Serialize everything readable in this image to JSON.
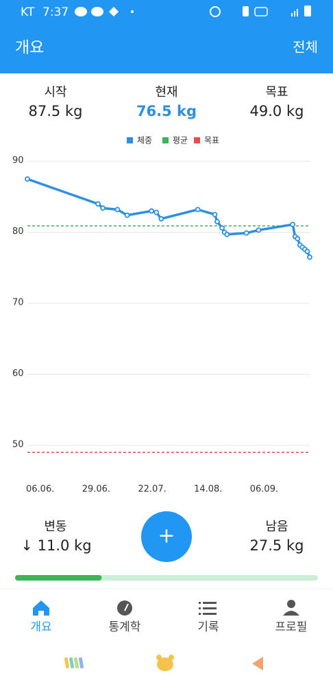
{
  "status_bar": {
    "carrier": "KT",
    "time": "7:37"
  },
  "header": {
    "title": "개요",
    "action": "전체"
  },
  "summary": [
    {
      "label": "시작",
      "value": "87.5 kg"
    },
    {
      "label": "현재",
      "value": "76.5 kg"
    },
    {
      "label": "목표",
      "value": "49.0 kg"
    }
  ],
  "chart_data": {
    "type": "line",
    "series": [
      {
        "name": "체중",
        "color": "#2d8fe2",
        "x": [
          "06.06.",
          "05.07.",
          "07.07.",
          "13.07.",
          "17.07.",
          "27.07.",
          "29.07.",
          "31.07.",
          "15.08.",
          "22.08.",
          "23.08.",
          "25.08.",
          "26.08.",
          "27.08.",
          "04.09.",
          "09.09.",
          "23.09.",
          "24.09.",
          "25.09.",
          "26.09.",
          "27.09.",
          "28.09.",
          "29.09.",
          "30.09."
        ],
        "values": [
          87.5,
          84.0,
          83.4,
          83.2,
          82.4,
          83.0,
          82.8,
          81.9,
          83.2,
          82.5,
          81.5,
          80.6,
          80.0,
          79.7,
          79.9,
          80.3,
          81.1,
          79.4,
          79.1,
          78.2,
          77.9,
          77.6,
          77.3,
          76.5
        ]
      },
      {
        "name": "평균",
        "color": "#3cb55a",
        "values": [
          80.9
        ]
      },
      {
        "name": "목표",
        "color": "#e84c4c",
        "values": [
          49.0
        ]
      }
    ],
    "xlim": [
      "06.06.",
      "30.09."
    ],
    "xticks": [
      "06.06.",
      "29.06.",
      "22.07.",
      "14.08.",
      "06.09."
    ],
    "ylim": [
      47,
      90
    ],
    "yticks": [
      50,
      60,
      70,
      80,
      90
    ],
    "grid": true
  },
  "change": {
    "label": "변동",
    "value": "↓ 11.0 kg"
  },
  "remaining": {
    "label": "남음",
    "value": "27.5 kg"
  },
  "fab": "+",
  "progress": 0.286,
  "nav": [
    "개요",
    "통계학",
    "기록",
    "프로필"
  ]
}
